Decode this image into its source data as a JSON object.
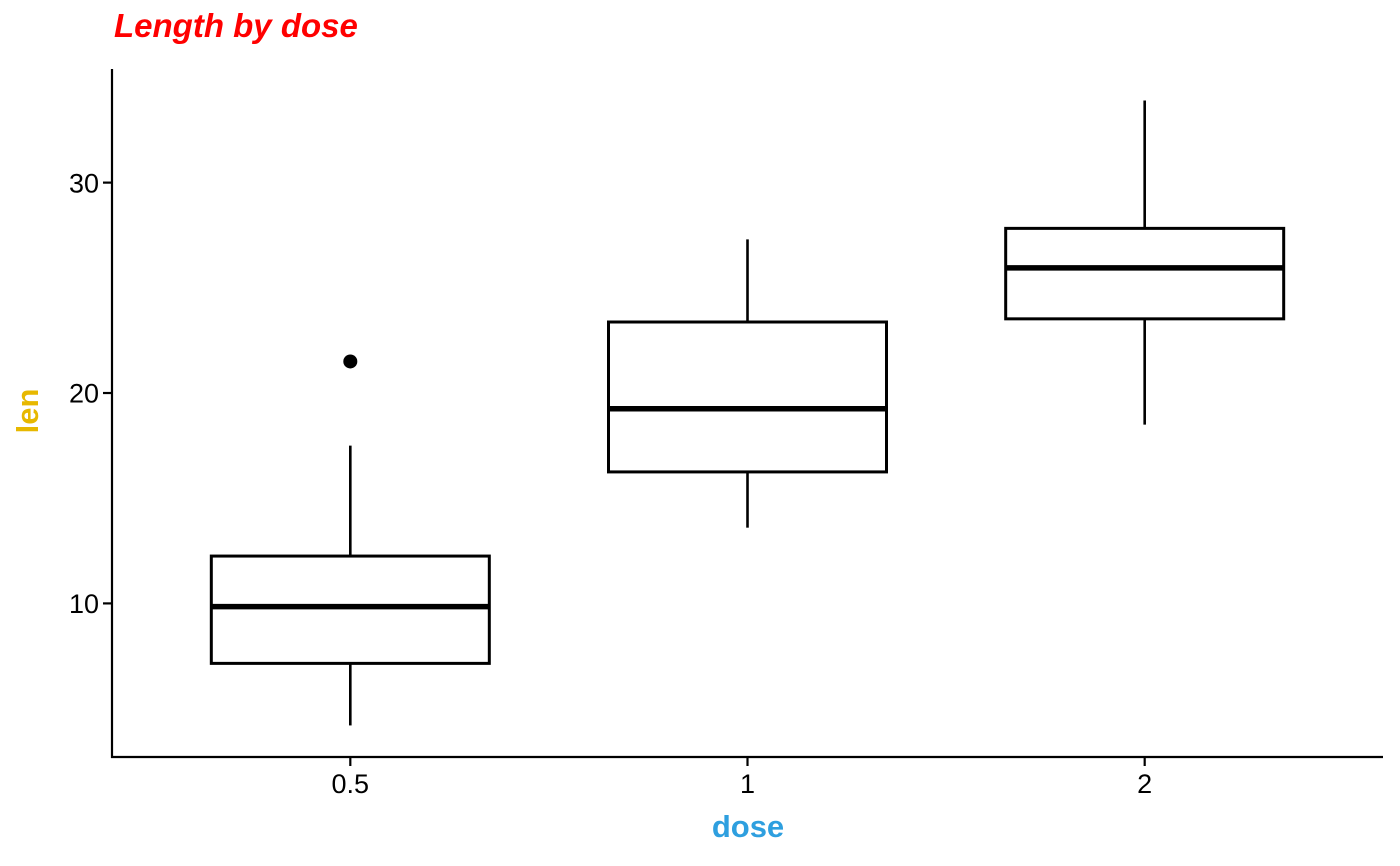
{
  "chart_data": {
    "type": "boxplot",
    "title": "Length by dose",
    "xlabel": "dose",
    "ylabel": "len",
    "categories": [
      "0.5",
      "1",
      "2"
    ],
    "series": [
      {
        "name": "dose 0.5",
        "category": "0.5",
        "whisker_low": 4.2,
        "q1": 7.15,
        "median": 9.85,
        "q3": 12.25,
        "whisker_high": 17.5,
        "outliers": [
          21.5
        ]
      },
      {
        "name": "dose 1",
        "category": "1",
        "whisker_low": 13.6,
        "q1": 16.25,
        "median": 19.25,
        "q3": 23.375,
        "whisker_high": 27.3,
        "outliers": []
      },
      {
        "name": "dose 2",
        "category": "2",
        "whisker_low": 18.5,
        "q1": 23.525,
        "median": 25.95,
        "q3": 27.825,
        "whisker_high": 33.9,
        "outliers": []
      }
    ],
    "x_ticks": [
      "0.5",
      "1",
      "2"
    ],
    "y_ticks": [
      10,
      20,
      30
    ],
    "ylim": [
      2.7,
      35.4
    ],
    "grid": false,
    "legend": false,
    "styles": {
      "title_color": "#FF0000",
      "xlabel_color": "#2E9FDF",
      "ylabel_color": "#E7B800",
      "axis_color": "#000000",
      "tick_text_color": "#000000",
      "box_stroke_color": "#000000",
      "box_fill_color": "#FFFFFF",
      "background_color": "#FFFFFF"
    }
  }
}
